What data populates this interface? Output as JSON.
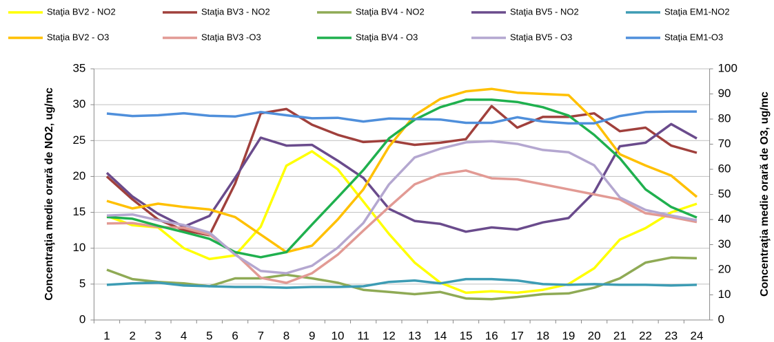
{
  "chart_data": {
    "type": "line",
    "y_label": "Concentraţia medie orară de NO2, ug/mc",
    "y2_label": "Concentraţia medie orară de O3, ug/mc",
    "categories": [
      1,
      2,
      3,
      4,
      5,
      6,
      7,
      8,
      9,
      10,
      11,
      12,
      13,
      14,
      15,
      16,
      17,
      18,
      19,
      20,
      21,
      22,
      23,
      24
    ],
    "ylim": [
      0,
      35
    ],
    "yticks": [
      0,
      5,
      10,
      15,
      20,
      25,
      30,
      35
    ],
    "y2lim": [
      0,
      100
    ],
    "y2ticks": [
      0,
      10,
      20,
      30,
      40,
      50,
      60,
      70,
      80,
      90,
      100
    ],
    "grid": true,
    "series": [
      {
        "name": "Staţia BV2 - NO2",
        "color": "#ffff00",
        "values": [
          14.5,
          13.2,
          12.9,
          10,
          8.5,
          9,
          13,
          21.5,
          23.5,
          21,
          16.5,
          12,
          8,
          5.2,
          3.8,
          4,
          3.8,
          4.2,
          5,
          7.2,
          11.2,
          12.8,
          15,
          16.2
        ]
      },
      {
        "name": "Staţia BV3 - NO2",
        "color": "#a0403c",
        "values": [
          20,
          16.8,
          14,
          12.5,
          11.8,
          19,
          28.8,
          29.4,
          27.2,
          25.8,
          24.8,
          25,
          24.4,
          24.7,
          25.2,
          29.8,
          26.8,
          28.3,
          28.3,
          28.8,
          26.3,
          26.8,
          24.3,
          23.3
        ]
      },
      {
        "name": "Staţia BV4 - NO2",
        "color": "#8faa55",
        "values": [
          7,
          5.7,
          5.3,
          5.1,
          4.7,
          5.8,
          5.8,
          6.3,
          5.8,
          5.2,
          4.2,
          3.9,
          3.6,
          3.9,
          3,
          2.9,
          3.2,
          3.6,
          3.7,
          4.5,
          5.8,
          8,
          8.7,
          8.6
        ]
      },
      {
        "name": "Staţia BV5 - NO2",
        "color": "#6a4b8c",
        "values": [
          20.5,
          17.2,
          14.8,
          13,
          14.5,
          19.8,
          25.4,
          24.3,
          24.4,
          22.2,
          19.8,
          15.5,
          13.8,
          13.4,
          12.3,
          12.9,
          12.6,
          13.6,
          14.2,
          17.8,
          24.2,
          24.7,
          27.3,
          25.3
        ]
      },
      {
        "name": "Staţia EM1-NO2",
        "color": "#3d9cb4",
        "values": [
          4.9,
          5.1,
          5.2,
          4.8,
          4.7,
          4.6,
          4.6,
          4.5,
          4.6,
          4.6,
          4.7,
          5.3,
          5.5,
          5.1,
          5.7,
          5.7,
          5.5,
          5,
          4.9,
          5,
          4.9,
          4.9,
          4.8,
          4.9
        ]
      },
      {
        "name": "Staţia BV2 - O3",
        "color": "#ffc000",
        "axis": "y2",
        "values": [
          47.4,
          44.4,
          46.3,
          45,
          44,
          41,
          34,
          27,
          29.6,
          40,
          52,
          69,
          81.5,
          88,
          91,
          92,
          90.5,
          90,
          89.5,
          79.5,
          66,
          61.5,
          57.5,
          49
        ]
      },
      {
        "name": "Staţia BV3 -O3",
        "color": "#e29a94",
        "axis": "y2",
        "values": [
          38.4,
          38.6,
          37,
          36.7,
          34,
          26.5,
          16.8,
          14.8,
          18.6,
          26,
          35.6,
          45,
          54,
          58,
          59.5,
          56.4,
          56,
          54,
          52,
          50,
          48,
          42.5,
          41,
          39
        ]
      },
      {
        "name": "Staţia BV4 - O3",
        "color": "#1fb04e",
        "axis": "y2",
        "values": [
          41,
          40.3,
          37.5,
          35,
          32.3,
          27,
          25,
          27,
          38,
          48.8,
          59.7,
          72.3,
          79.7,
          84.7,
          87.7,
          87.7,
          86.8,
          84.7,
          81.4,
          73.7,
          64.4,
          52,
          45,
          40.8
        ]
      },
      {
        "name": "Staţia BV5 - O3",
        "color": "#b4a7d0",
        "axis": "y2",
        "values": [
          41.6,
          42,
          39.7,
          37.8,
          34.8,
          26,
          19.5,
          18.6,
          21.6,
          28.8,
          38.6,
          54,
          64.7,
          68.2,
          70.7,
          71.2,
          70.1,
          67.7,
          66.8,
          61.6,
          48.8,
          43.8,
          41.6,
          39.7
        ]
      },
      {
        "name": "Staţia EM1-O3",
        "color": "#4f8fdb",
        "axis": "y2",
        "values": [
          82.2,
          81.2,
          81.5,
          82.3,
          81.3,
          81,
          82.8,
          81.5,
          80.3,
          80.5,
          79,
          80.2,
          80,
          79.8,
          78.5,
          78.5,
          80.7,
          79,
          78.3,
          78.3,
          81.2,
          82.8,
          83,
          83
        ]
      }
    ]
  }
}
